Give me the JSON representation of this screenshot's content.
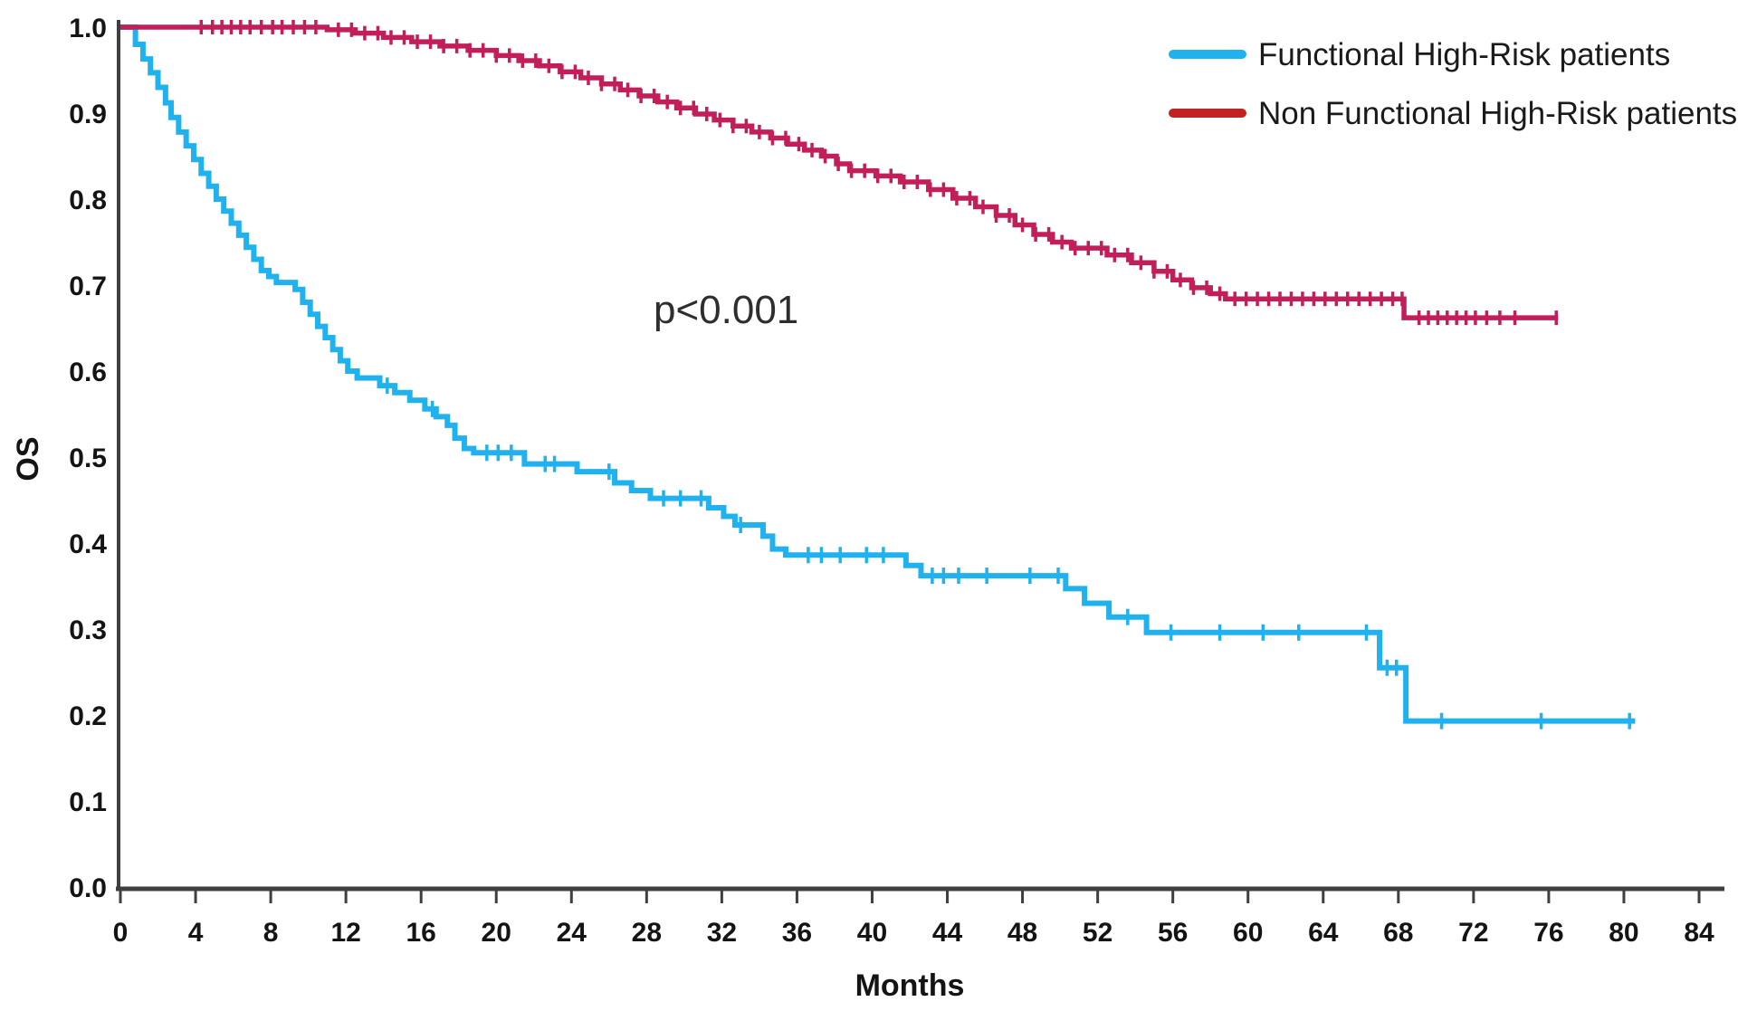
{
  "chart_data": {
    "type": "line",
    "subtype": "kaplan-meier-step-curves",
    "title": "",
    "xlabel": "Months",
    "ylabel": "OS",
    "annotation": "p<0.001",
    "xlim": [
      0,
      84
    ],
    "ylim": [
      0.0,
      1.0
    ],
    "x_ticks": [
      0,
      4,
      8,
      12,
      16,
      20,
      24,
      28,
      32,
      36,
      40,
      44,
      48,
      52,
      56,
      60,
      64,
      68,
      72,
      76,
      80,
      84
    ],
    "y_ticks": [
      0.0,
      0.1,
      0.2,
      0.3,
      0.4,
      0.5,
      0.6,
      0.7,
      0.8,
      0.9,
      1.0
    ],
    "grid": false,
    "legend_position": "top-right",
    "series": [
      {
        "name": "Functional High-Risk patients",
        "color": "#20B1EF",
        "legend_color": "#20B1EF",
        "end_month": 80.6,
        "step_points": [
          [
            0,
            1.0
          ],
          [
            0.8,
            0.98
          ],
          [
            1.2,
            0.963
          ],
          [
            1.6,
            0.947
          ],
          [
            2.0,
            0.93
          ],
          [
            2.4,
            0.912
          ],
          [
            2.7,
            0.895
          ],
          [
            3.1,
            0.878
          ],
          [
            3.5,
            0.862
          ],
          [
            3.9,
            0.846
          ],
          [
            4.3,
            0.83
          ],
          [
            4.7,
            0.815
          ],
          [
            5.1,
            0.8
          ],
          [
            5.5,
            0.786
          ],
          [
            5.9,
            0.772
          ],
          [
            6.3,
            0.758
          ],
          [
            6.7,
            0.744
          ],
          [
            7.1,
            0.73
          ],
          [
            7.5,
            0.717
          ],
          [
            7.9,
            0.71
          ],
          [
            8.3,
            0.703
          ],
          [
            9.3,
            0.695
          ],
          [
            9.7,
            0.68
          ],
          [
            10.1,
            0.666
          ],
          [
            10.5,
            0.652
          ],
          [
            10.9,
            0.639
          ],
          [
            11.3,
            0.625
          ],
          [
            11.7,
            0.612
          ],
          [
            12.1,
            0.6
          ],
          [
            12.6,
            0.592
          ],
          [
            13.8,
            0.583
          ],
          [
            14.6,
            0.575
          ],
          [
            15.4,
            0.566
          ],
          [
            16.2,
            0.556
          ],
          [
            16.8,
            0.547
          ],
          [
            17.4,
            0.537
          ],
          [
            17.8,
            0.522
          ],
          [
            18.3,
            0.51
          ],
          [
            18.8,
            0.505
          ],
          [
            21.5,
            0.492
          ],
          [
            24.3,
            0.483
          ],
          [
            26.3,
            0.47
          ],
          [
            27.2,
            0.461
          ],
          [
            28.2,
            0.452
          ],
          [
            31.3,
            0.441
          ],
          [
            32.1,
            0.431
          ],
          [
            32.7,
            0.421
          ],
          [
            34.2,
            0.408
          ],
          [
            34.7,
            0.393
          ],
          [
            35.4,
            0.386
          ],
          [
            41.8,
            0.374
          ],
          [
            42.6,
            0.362
          ],
          [
            50.3,
            0.347
          ],
          [
            51.3,
            0.33
          ],
          [
            52.6,
            0.314
          ],
          [
            54.6,
            0.296
          ],
          [
            67.0,
            0.255
          ],
          [
            68.4,
            0.193
          ]
        ],
        "censor_months": [
          14.2,
          16.6,
          19.5,
          20.1,
          20.8,
          22.6,
          23.1,
          26.0,
          28.9,
          29.8,
          30.9,
          33.0,
          36.6,
          37.3,
          38.3,
          39.7,
          40.6,
          43.2,
          43.8,
          44.6,
          46.1,
          48.4,
          49.9,
          53.6,
          55.9,
          58.5,
          60.8,
          62.7,
          66.3,
          67.4,
          67.9,
          70.3,
          75.6,
          80.3
        ]
      },
      {
        "name": "Non Functional High-Risk patients",
        "color": "#C21E5A",
        "legend_color": "#C32222",
        "end_month": 76.5,
        "step_points": [
          [
            0,
            1.0
          ],
          [
            11.0,
            0.997
          ],
          [
            12.5,
            0.993
          ],
          [
            14.0,
            0.988
          ],
          [
            15.5,
            0.983
          ],
          [
            17.0,
            0.978
          ],
          [
            18.5,
            0.973
          ],
          [
            20.0,
            0.967
          ],
          [
            21.2,
            0.961
          ],
          [
            22.3,
            0.955
          ],
          [
            23.4,
            0.948
          ],
          [
            24.5,
            0.941
          ],
          [
            25.6,
            0.934
          ],
          [
            26.6,
            0.927
          ],
          [
            27.6,
            0.92
          ],
          [
            28.6,
            0.913
          ],
          [
            29.6,
            0.906
          ],
          [
            30.6,
            0.899
          ],
          [
            31.6,
            0.892
          ],
          [
            32.6,
            0.885
          ],
          [
            33.6,
            0.878
          ],
          [
            34.6,
            0.871
          ],
          [
            35.5,
            0.864
          ],
          [
            36.4,
            0.857
          ],
          [
            37.3,
            0.85
          ],
          [
            38.1,
            0.841
          ],
          [
            38.8,
            0.833
          ],
          [
            40.2,
            0.827
          ],
          [
            41.5,
            0.82
          ],
          [
            43.0,
            0.811
          ],
          [
            44.3,
            0.801
          ],
          [
            45.5,
            0.791
          ],
          [
            46.6,
            0.781
          ],
          [
            47.6,
            0.77
          ],
          [
            48.6,
            0.759
          ],
          [
            49.6,
            0.75
          ],
          [
            50.6,
            0.743
          ],
          [
            52.5,
            0.735
          ],
          [
            53.8,
            0.726
          ],
          [
            55.0,
            0.716
          ],
          [
            56.0,
            0.706
          ],
          [
            57.0,
            0.697
          ],
          [
            58.0,
            0.69
          ],
          [
            58.8,
            0.684
          ],
          [
            68.3,
            0.662
          ]
        ],
        "censor_months": [
          4.3,
          4.9,
          5.4,
          5.9,
          6.4,
          6.9,
          7.5,
          8.1,
          8.6,
          9.2,
          9.8,
          10.4,
          11.6,
          12.3,
          13.0,
          13.7,
          14.4,
          15.1,
          15.8,
          16.5,
          17.2,
          17.9,
          18.6,
          19.3,
          20.0,
          20.7,
          21.4,
          22.1,
          22.8,
          23.5,
          24.2,
          24.9,
          25.6,
          26.3,
          27.0,
          27.7,
          28.4,
          29.1,
          29.8,
          30.5,
          31.2,
          31.9,
          32.6,
          33.3,
          34.0,
          34.7,
          35.4,
          36.1,
          36.8,
          37.5,
          38.2,
          38.9,
          39.6,
          40.3,
          41.0,
          41.7,
          42.4,
          43.1,
          43.8,
          44.5,
          45.2,
          45.9,
          46.6,
          47.3,
          48.0,
          48.7,
          49.4,
          50.1,
          50.8,
          51.5,
          52.2,
          52.9,
          53.6,
          54.3,
          55.0,
          55.7,
          56.4,
          57.1,
          57.8,
          58.5,
          59.3,
          59.9,
          60.5,
          61.1,
          61.7,
          62.3,
          62.9,
          63.5,
          64.1,
          64.7,
          65.3,
          65.9,
          66.5,
          67.1,
          67.7,
          68.2,
          69.1,
          69.6,
          70.1,
          70.6,
          71.1,
          71.6,
          72.1,
          72.7,
          73.4,
          74.2,
          76.4
        ]
      }
    ]
  }
}
